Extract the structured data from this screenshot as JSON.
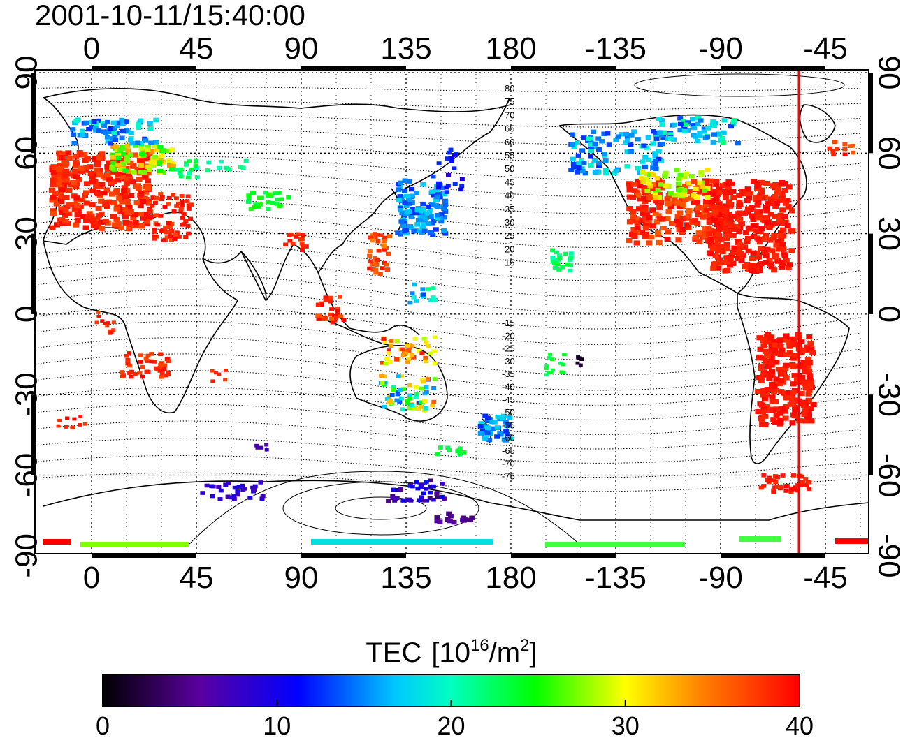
{
  "timestamp": "2001-10-11/15:40:00",
  "map": {
    "lon_labels": [
      "0",
      "45",
      "90",
      "135",
      "180",
      "-135",
      "-90",
      "-45"
    ],
    "lat_labels": [
      "90",
      "60",
      "30",
      "0",
      "-30",
      "-60",
      "-90"
    ],
    "contour_labels_north": [
      "80",
      "75",
      "70",
      "65",
      "60",
      "55",
      "50",
      "45",
      "40",
      "35",
      "30",
      "25",
      "20",
      "15"
    ],
    "contour_labels_south": [
      "-15",
      "-20",
      "-25",
      "-30",
      "-35",
      "-40",
      "-45",
      "-50",
      "-55",
      "-60",
      "-65",
      "-70",
      "-75"
    ]
  },
  "colorbar": {
    "title": "TEC",
    "unit_base": "[10",
    "unit_exp1": "16",
    "unit_mid": "/m",
    "unit_exp2": "2",
    "unit_end": "]",
    "ticks": [
      "0",
      "10",
      "20",
      "30",
      "40"
    ],
    "colors": [
      "#000000",
      "#5a00a0",
      "#0000ff",
      "#00ffff",
      "#00ff00",
      "#ffff00",
      "#ff8000",
      "#ff0000"
    ]
  },
  "colors": {
    "high": "#ff0000",
    "mid": "#00ff00",
    "low": "#0000ff",
    "marker_line": "#ff0000"
  }
}
